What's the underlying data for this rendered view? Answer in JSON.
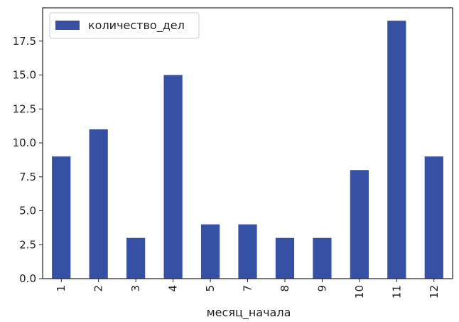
{
  "chart_data": {
    "type": "bar",
    "categories": [
      "1",
      "2",
      "3",
      "4",
      "5",
      "7",
      "8",
      "9",
      "10",
      "11",
      "12"
    ],
    "series": [
      {
        "name": "количество_дел",
        "values": [
          9,
          11,
          3,
          15,
          4,
          4,
          3,
          3,
          8,
          19,
          9
        ]
      }
    ],
    "title": "",
    "xlabel": "месяц_начала",
    "ylabel": "",
    "ylim": [
      0,
      19.95
    ],
    "yticks": [
      "0.0",
      "2.5",
      "5.0",
      "7.5",
      "10.0",
      "12.5",
      "15.0",
      "17.5"
    ],
    "grid": false,
    "legend": "top-left",
    "colors": {
      "bar": "#3650a3",
      "axis": "#222222"
    }
  }
}
